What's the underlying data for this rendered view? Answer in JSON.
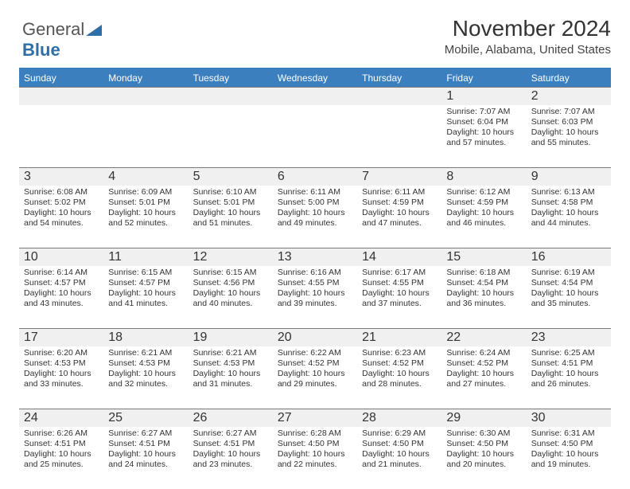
{
  "logo": {
    "text_gray": "General",
    "text_blue": "Blue"
  },
  "title": "November 2024",
  "location": "Mobile, Alabama, United States",
  "day_headers": [
    "Sunday",
    "Monday",
    "Tuesday",
    "Wednesday",
    "Thursday",
    "Friday",
    "Saturday"
  ],
  "colors": {
    "header_bg": "#3b7fbf",
    "header_text": "#ffffff",
    "rule": "#7a7a7a",
    "daynum_bg": "#f0f0f0",
    "text": "#333333"
  },
  "weeks": [
    [
      {
        "n": "",
        "lines": []
      },
      {
        "n": "",
        "lines": []
      },
      {
        "n": "",
        "lines": []
      },
      {
        "n": "",
        "lines": []
      },
      {
        "n": "",
        "lines": []
      },
      {
        "n": "1",
        "lines": [
          "Sunrise: 7:07 AM",
          "Sunset: 6:04 PM",
          "Daylight: 10 hours",
          "and 57 minutes."
        ]
      },
      {
        "n": "2",
        "lines": [
          "Sunrise: 7:07 AM",
          "Sunset: 6:03 PM",
          "Daylight: 10 hours",
          "and 55 minutes."
        ]
      }
    ],
    [
      {
        "n": "3",
        "lines": [
          "Sunrise: 6:08 AM",
          "Sunset: 5:02 PM",
          "Daylight: 10 hours",
          "and 54 minutes."
        ]
      },
      {
        "n": "4",
        "lines": [
          "Sunrise: 6:09 AM",
          "Sunset: 5:01 PM",
          "Daylight: 10 hours",
          "and 52 minutes."
        ]
      },
      {
        "n": "5",
        "lines": [
          "Sunrise: 6:10 AM",
          "Sunset: 5:01 PM",
          "Daylight: 10 hours",
          "and 51 minutes."
        ]
      },
      {
        "n": "6",
        "lines": [
          "Sunrise: 6:11 AM",
          "Sunset: 5:00 PM",
          "Daylight: 10 hours",
          "and 49 minutes."
        ]
      },
      {
        "n": "7",
        "lines": [
          "Sunrise: 6:11 AM",
          "Sunset: 4:59 PM",
          "Daylight: 10 hours",
          "and 47 minutes."
        ]
      },
      {
        "n": "8",
        "lines": [
          "Sunrise: 6:12 AM",
          "Sunset: 4:59 PM",
          "Daylight: 10 hours",
          "and 46 minutes."
        ]
      },
      {
        "n": "9",
        "lines": [
          "Sunrise: 6:13 AM",
          "Sunset: 4:58 PM",
          "Daylight: 10 hours",
          "and 44 minutes."
        ]
      }
    ],
    [
      {
        "n": "10",
        "lines": [
          "Sunrise: 6:14 AM",
          "Sunset: 4:57 PM",
          "Daylight: 10 hours",
          "and 43 minutes."
        ]
      },
      {
        "n": "11",
        "lines": [
          "Sunrise: 6:15 AM",
          "Sunset: 4:57 PM",
          "Daylight: 10 hours",
          "and 41 minutes."
        ]
      },
      {
        "n": "12",
        "lines": [
          "Sunrise: 6:15 AM",
          "Sunset: 4:56 PM",
          "Daylight: 10 hours",
          "and 40 minutes."
        ]
      },
      {
        "n": "13",
        "lines": [
          "Sunrise: 6:16 AM",
          "Sunset: 4:55 PM",
          "Daylight: 10 hours",
          "and 39 minutes."
        ]
      },
      {
        "n": "14",
        "lines": [
          "Sunrise: 6:17 AM",
          "Sunset: 4:55 PM",
          "Daylight: 10 hours",
          "and 37 minutes."
        ]
      },
      {
        "n": "15",
        "lines": [
          "Sunrise: 6:18 AM",
          "Sunset: 4:54 PM",
          "Daylight: 10 hours",
          "and 36 minutes."
        ]
      },
      {
        "n": "16",
        "lines": [
          "Sunrise: 6:19 AM",
          "Sunset: 4:54 PM",
          "Daylight: 10 hours",
          "and 35 minutes."
        ]
      }
    ],
    [
      {
        "n": "17",
        "lines": [
          "Sunrise: 6:20 AM",
          "Sunset: 4:53 PM",
          "Daylight: 10 hours",
          "and 33 minutes."
        ]
      },
      {
        "n": "18",
        "lines": [
          "Sunrise: 6:21 AM",
          "Sunset: 4:53 PM",
          "Daylight: 10 hours",
          "and 32 minutes."
        ]
      },
      {
        "n": "19",
        "lines": [
          "Sunrise: 6:21 AM",
          "Sunset: 4:53 PM",
          "Daylight: 10 hours",
          "and 31 minutes."
        ]
      },
      {
        "n": "20",
        "lines": [
          "Sunrise: 6:22 AM",
          "Sunset: 4:52 PM",
          "Daylight: 10 hours",
          "and 29 minutes."
        ]
      },
      {
        "n": "21",
        "lines": [
          "Sunrise: 6:23 AM",
          "Sunset: 4:52 PM",
          "Daylight: 10 hours",
          "and 28 minutes."
        ]
      },
      {
        "n": "22",
        "lines": [
          "Sunrise: 6:24 AM",
          "Sunset: 4:52 PM",
          "Daylight: 10 hours",
          "and 27 minutes."
        ]
      },
      {
        "n": "23",
        "lines": [
          "Sunrise: 6:25 AM",
          "Sunset: 4:51 PM",
          "Daylight: 10 hours",
          "and 26 minutes."
        ]
      }
    ],
    [
      {
        "n": "24",
        "lines": [
          "Sunrise: 6:26 AM",
          "Sunset: 4:51 PM",
          "Daylight: 10 hours",
          "and 25 minutes."
        ]
      },
      {
        "n": "25",
        "lines": [
          "Sunrise: 6:27 AM",
          "Sunset: 4:51 PM",
          "Daylight: 10 hours",
          "and 24 minutes."
        ]
      },
      {
        "n": "26",
        "lines": [
          "Sunrise: 6:27 AM",
          "Sunset: 4:51 PM",
          "Daylight: 10 hours",
          "and 23 minutes."
        ]
      },
      {
        "n": "27",
        "lines": [
          "Sunrise: 6:28 AM",
          "Sunset: 4:50 PM",
          "Daylight: 10 hours",
          "and 22 minutes."
        ]
      },
      {
        "n": "28",
        "lines": [
          "Sunrise: 6:29 AM",
          "Sunset: 4:50 PM",
          "Daylight: 10 hours",
          "and 21 minutes."
        ]
      },
      {
        "n": "29",
        "lines": [
          "Sunrise: 6:30 AM",
          "Sunset: 4:50 PM",
          "Daylight: 10 hours",
          "and 20 minutes."
        ]
      },
      {
        "n": "30",
        "lines": [
          "Sunrise: 6:31 AM",
          "Sunset: 4:50 PM",
          "Daylight: 10 hours",
          "and 19 minutes."
        ]
      }
    ]
  ]
}
